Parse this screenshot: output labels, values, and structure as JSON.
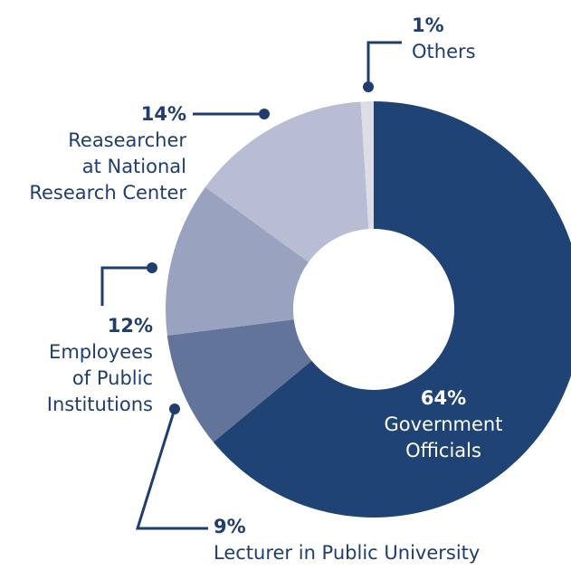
{
  "chart_data": {
    "type": "pie",
    "style": "donut",
    "title": "",
    "slices": [
      {
        "label": "Government Officials",
        "value": 64,
        "value_label": "64%",
        "color": "#1f4374"
      },
      {
        "label": "Lecturer in Public University",
        "value": 9,
        "value_label": "9%",
        "color": "#63749b"
      },
      {
        "label": "Employees of Public Institutions",
        "value": 12,
        "value_label": "12%",
        "color": "#99a3c0"
      },
      {
        "label": "Reasearcher at National Research Center",
        "value": 14,
        "value_label": "14%",
        "color": "#b8bdd4"
      },
      {
        "label": "Others",
        "value": 1,
        "value_label": "1%",
        "color": "#dcdde6"
      }
    ],
    "labels": {
      "government": {
        "pct": "64%",
        "lines": [
          "Government",
          "Officials"
        ]
      },
      "lecturer": {
        "pct": "9%",
        "lines": [
          "Lecturer in Public University"
        ]
      },
      "employees": {
        "pct": "12%",
        "lines": [
          "Employees",
          "of Public",
          "Institutions"
        ]
      },
      "researcher": {
        "pct": "14%",
        "lines": [
          "Reasearcher",
          "at National",
          "Research Center"
        ]
      },
      "others": {
        "pct": "1%",
        "lines": [
          "Others"
        ]
      }
    },
    "leader_color": "#1f3d6f"
  }
}
